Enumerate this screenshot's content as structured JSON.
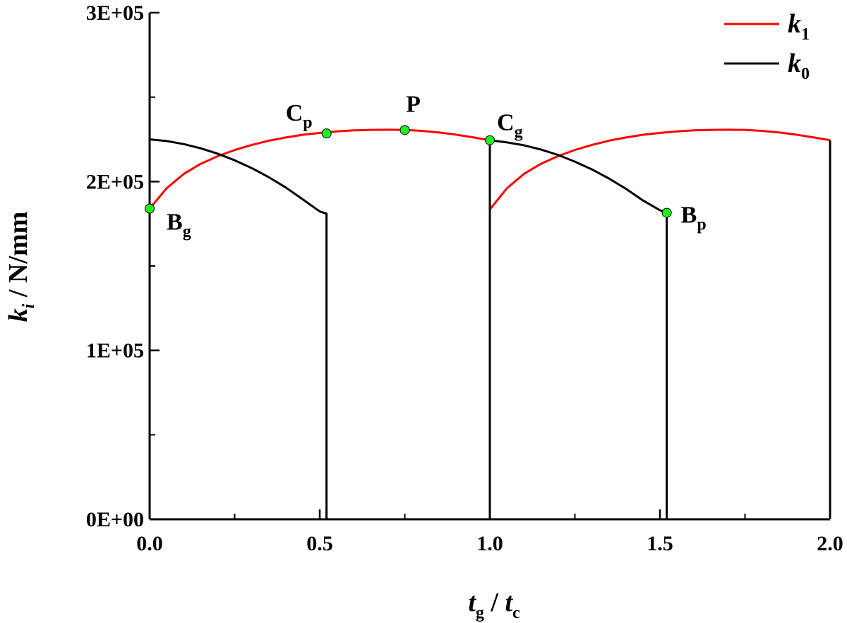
{
  "chart_data": {
    "type": "line",
    "xlabel": {
      "main": "t",
      "sub": "g",
      "sep": " / ",
      "main2": "t",
      "sub2": "c"
    },
    "ylabel": {
      "main": "k",
      "sub": "i",
      "rest": " / N/mm"
    },
    "xlim": [
      0,
      2
    ],
    "ylim": [
      0,
      300000
    ],
    "x_ticks": [
      0.0,
      0.5,
      1.0,
      1.5,
      2.0
    ],
    "x_tick_labels": [
      "0.0",
      "0.5",
      "1.0",
      "1.5",
      "2.0"
    ],
    "y_ticks": [
      0,
      100000,
      200000,
      300000
    ],
    "y_tick_labels": [
      "0E+00",
      "1E+05",
      "2E+05",
      "3E+05"
    ],
    "grid": false,
    "legend_position": "top-right",
    "series": [
      {
        "name": "k1",
        "legend_main": "k",
        "legend_sub": "1",
        "color": "#ff0000",
        "segments": [
          [
            [
              0.0,
              184000
            ],
            [
              0.05,
              196000
            ],
            [
              0.1,
              204500
            ],
            [
              0.15,
              210500
            ],
            [
              0.2,
              215000
            ],
            [
              0.25,
              218700
            ],
            [
              0.3,
              221700
            ],
            [
              0.35,
              224200
            ],
            [
              0.4,
              226100
            ],
            [
              0.45,
              227700
            ],
            [
              0.5,
              228800
            ],
            [
              0.55,
              229700
            ],
            [
              0.6,
              230300
            ],
            [
              0.65,
              230600
            ],
            [
              0.7,
              230700
            ],
            [
              0.75,
              230600
            ],
            [
              0.8,
              230000
            ],
            [
              0.85,
              229100
            ],
            [
              0.9,
              227800
            ],
            [
              0.95,
              226200
            ],
            [
              1.0,
              224500
            ]
          ],
          [
            [
              1.0,
              183500
            ],
            [
              1.05,
              196000
            ],
            [
              1.1,
              204500
            ],
            [
              1.15,
              210500
            ],
            [
              1.2,
              215000
            ],
            [
              1.25,
              218700
            ],
            [
              1.3,
              221700
            ],
            [
              1.35,
              224200
            ],
            [
              1.4,
              226100
            ],
            [
              1.45,
              227700
            ],
            [
              1.5,
              228800
            ],
            [
              1.55,
              229700
            ],
            [
              1.6,
              230300
            ],
            [
              1.65,
              230600
            ],
            [
              1.7,
              230700
            ],
            [
              1.75,
              230600
            ],
            [
              1.8,
              230000
            ],
            [
              1.85,
              229100
            ],
            [
              1.9,
              227800
            ],
            [
              1.95,
              226200
            ],
            [
              2.0,
              224500
            ]
          ]
        ]
      },
      {
        "name": "k0",
        "legend_main": "k",
        "legend_sub": "0",
        "color": "#000000",
        "segments": [
          [
            [
              0.0,
              225000
            ],
            [
              0.05,
              224000
            ],
            [
              0.1,
              222200
            ],
            [
              0.15,
              219700
            ],
            [
              0.2,
              216500
            ],
            [
              0.25,
              212600
            ],
            [
              0.3,
              208000
            ],
            [
              0.35,
              202600
            ],
            [
              0.4,
              196500
            ],
            [
              0.45,
              189500
            ],
            [
              0.5,
              182300
            ],
            [
              0.52,
              181000
            ],
            [
              0.52,
              0
            ]
          ],
          [
            [
              1.0,
              0
            ],
            [
              1.0,
              224500
            ],
            [
              1.05,
              223200
            ],
            [
              1.1,
              221500
            ],
            [
              1.15,
              219000
            ],
            [
              1.2,
              215800
            ],
            [
              1.25,
              211800
            ],
            [
              1.3,
              207200
            ],
            [
              1.35,
              201800
            ],
            [
              1.4,
              195700
            ],
            [
              1.45,
              188800
            ],
            [
              1.5,
              183000
            ],
            [
              1.52,
              181500
            ],
            [
              1.52,
              0
            ]
          ],
          [
            [
              2.0,
              224500
            ],
            [
              2.0,
              0
            ]
          ]
        ]
      }
    ],
    "annotations": [
      {
        "main": "B",
        "sub": "g",
        "x": 0.0,
        "y": 184000,
        "anchor": "below-right"
      },
      {
        "main": "C",
        "sub": "p",
        "x": 0.52,
        "y": 228500,
        "anchor": "above-left"
      },
      {
        "main": "P",
        "sub": "",
        "x": 0.75,
        "y": 230500,
        "anchor": "above"
      },
      {
        "main": "C",
        "sub": "g",
        "x": 1.0,
        "y": 224500,
        "anchor": "above-right"
      },
      {
        "main": "B",
        "sub": "p",
        "x": 1.52,
        "y": 181500,
        "anchor": "right"
      }
    ],
    "marker_color": "#22ee22"
  }
}
